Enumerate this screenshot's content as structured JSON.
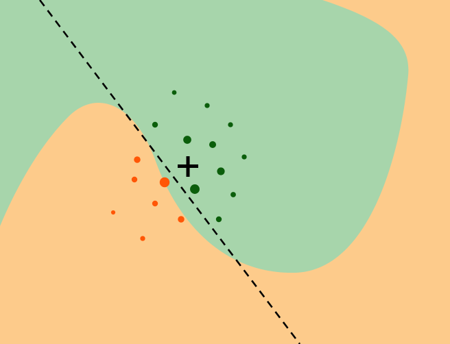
{
  "colors": {
    "background_region": "#fdcb8b",
    "classifier_region": "#a7d5ab",
    "class_green_points": "#0b5e0b",
    "class_orange_points": "#ff5606",
    "decision_line": "#000000",
    "query_marker": "#000000"
  },
  "regions": {
    "green_region_label": "",
    "orange_region_label": ""
  },
  "linear_boundary": {
    "style": "dashed"
  },
  "query_point": {
    "marker": "plus"
  },
  "points": {
    "green": [
      {
        "id": "g1",
        "weight": 0.25
      },
      {
        "id": "g2",
        "weight": 0.3
      },
      {
        "id": "g3",
        "weight": 0.3
      },
      {
        "id": "g4",
        "weight": 0.4
      },
      {
        "id": "g5",
        "weight": 0.7
      },
      {
        "id": "g6",
        "weight": 0.55
      },
      {
        "id": "g7",
        "weight": 0.3
      },
      {
        "id": "g8",
        "weight": 0.65
      },
      {
        "id": "g9",
        "weight": 0.9
      },
      {
        "id": "g10",
        "weight": 0.35
      },
      {
        "id": "g11",
        "weight": 0.4
      }
    ],
    "orange": [
      {
        "id": "o1",
        "weight": 0.5
      },
      {
        "id": "o2",
        "weight": 0.4
      },
      {
        "id": "o3",
        "weight": 0.95
      },
      {
        "id": "o4",
        "weight": 0.4
      },
      {
        "id": "o5",
        "weight": 0.5
      },
      {
        "id": "o6",
        "weight": 0.2
      },
      {
        "id": "o7",
        "weight": 0.3
      }
    ]
  }
}
